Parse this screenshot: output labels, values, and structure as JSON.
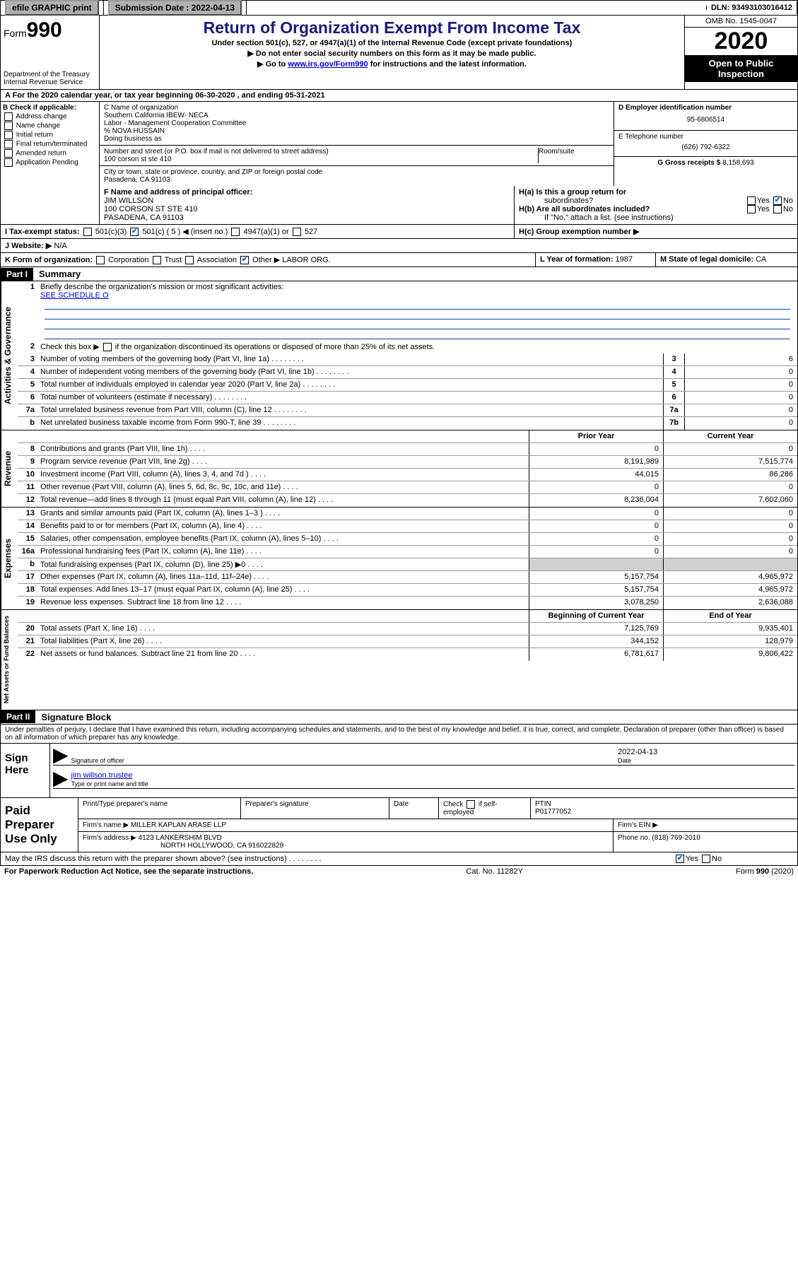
{
  "topbar": {
    "efile_label": "efile GRAPHIC print",
    "submission_label": "Submission Date : ",
    "submission_date": "2022-04-13",
    "dln_label": "DLN: ",
    "dln": "93493103016412"
  },
  "header": {
    "form_prefix": "Form",
    "form_number": "990",
    "dept1": "Department of the Treasury",
    "dept2": "Internal Revenue Service",
    "title": "Return of Organization Exempt From Income Tax",
    "subtitle": "Under section 501(c), 527, or 4947(a)(1) of the Internal Revenue Code (except private foundations)",
    "note1": "▶ Do not enter social security numbers on this form as it may be made public.",
    "note2_pre": "▶ Go to ",
    "note2_link": "www.irs.gov/Form990",
    "note2_post": " for instructions and the latest information.",
    "omb": "OMB No. 1545-0047",
    "year": "2020",
    "otp": "Open to Public Inspection"
  },
  "period": {
    "line": "A For the 2020 calendar year, or tax year beginning 06-30-2020    , and ending 05-31-2021"
  },
  "checkB": {
    "heading": "B Check if applicable:",
    "opts": [
      "Address change",
      "Name change",
      "Initial return",
      "Final return/terminated",
      "Amended return",
      "Application Pending"
    ]
  },
  "blockC": {
    "label": "C Name of organization",
    "name1": "Southern California IBEW- NECA",
    "name2": "Labor - Management Cooperation Committee",
    "care": "% NOVA HUSSAIN",
    "dba_label": "Doing business as",
    "addr_label": "Number and street (or P.O. box if mail is not delivered to street address)",
    "room_label": "Room/suite",
    "street": "100 corson st ste 410",
    "city_label": "City or town, state or province, country, and ZIP or foreign postal code",
    "city": "Pasadena, CA  91103"
  },
  "blockD": {
    "label": "D Employer identification number",
    "ein": "95-6806514"
  },
  "blockE": {
    "label": "E Telephone number",
    "phone": "(626) 792-6322"
  },
  "blockG": {
    "label": "G Gross receipts $ ",
    "amount": "8,158,693"
  },
  "blockF": {
    "label": "F  Name and address of principal officer:",
    "name": "JIM WILLSON",
    "addr1": "100 CORSON ST STE 410",
    "addr2": "PASADENA, CA  91103"
  },
  "blockH": {
    "ha": "H(a)  Is this a group return for",
    "ha2": "subordinates?",
    "hb": "H(b)  Are all subordinates included?",
    "hb_note": "If \"No,\" attach a list. (see instructions)",
    "hc": "H(c)  Group exemption number ▶",
    "yes": "Yes",
    "no": "No"
  },
  "blockI": {
    "label": "I   Tax-exempt status:",
    "opt1": "501(c)(3)",
    "opt2": "501(c) ( 5 ) ◀ (insert no.)",
    "opt3": "4947(a)(1) or",
    "opt4": "527"
  },
  "blockJ": {
    "label": "J   Website: ▶",
    "value": " N/A"
  },
  "blockK": {
    "label": "K Form of organization:",
    "opts": [
      "Corporation",
      "Trust",
      "Association",
      "Other ▶"
    ],
    "other_val": "LABOR ORG."
  },
  "blockL": {
    "label": "L Year of formation: ",
    "val": "1987"
  },
  "blockM": {
    "label": "M State of legal domicile: ",
    "val": "CA"
  },
  "part1": {
    "header": "Part I",
    "title": "Summary"
  },
  "summary": {
    "q1": "Briefly describe the organization's mission or most significant activities:",
    "q1_val": "SEE SCHEDULE O",
    "q2": "Check this box ▶      if the organization discontinued its operations or disposed of more than 25% of its net assets.",
    "lines_gov": [
      {
        "n": "3",
        "t": "Number of voting members of the governing body (Part VI, line 1a)",
        "b": "3",
        "v": "6"
      },
      {
        "n": "4",
        "t": "Number of independent voting members of the governing body (Part VI, line 1b)",
        "b": "4",
        "v": "0"
      },
      {
        "n": "5",
        "t": "Total number of individuals employed in calendar year 2020 (Part V, line 2a)",
        "b": "5",
        "v": "0"
      },
      {
        "n": "6",
        "t": "Total number of volunteers (estimate if necessary)",
        "b": "6",
        "v": "0"
      },
      {
        "n": "7a",
        "t": "Total unrelated business revenue from Part VIII, column (C), line 12",
        "b": "7a",
        "v": "0"
      },
      {
        "n": "b",
        "t": "Net unrelated business taxable income from Form 990-T, line 39",
        "b": "7b",
        "v": "0"
      }
    ],
    "col_prior": "Prior Year",
    "col_current": "Current Year",
    "col_begin": "Beginning of Current Year",
    "col_end": "End of Year",
    "rev": [
      {
        "n": "8",
        "t": "Contributions and grants (Part VIII, line 1h)",
        "p": "0",
        "c": "0"
      },
      {
        "n": "9",
        "t": "Program service revenue (Part VIII, line 2g)",
        "p": "8,191,989",
        "c": "7,515,774"
      },
      {
        "n": "10",
        "t": "Investment income (Part VIII, column (A), lines 3, 4, and 7d )",
        "p": "44,015",
        "c": "86,286"
      },
      {
        "n": "11",
        "t": "Other revenue (Part VIII, column (A), lines 5, 6d, 8c, 9c, 10c, and 11e)",
        "p": "0",
        "c": "0"
      },
      {
        "n": "12",
        "t": "Total revenue—add lines 8 through 11 (must equal Part VIII, column (A), line 12)",
        "p": "8,236,004",
        "c": "7,602,060"
      }
    ],
    "exp": [
      {
        "n": "13",
        "t": "Grants and similar amounts paid (Part IX, column (A), lines 1–3 )",
        "p": "0",
        "c": "0"
      },
      {
        "n": "14",
        "t": "Benefits paid to or for members (Part IX, column (A), line 4)",
        "p": "0",
        "c": "0"
      },
      {
        "n": "15",
        "t": "Salaries, other compensation, employee benefits (Part IX, column (A), lines 5–10)",
        "p": "0",
        "c": "0"
      },
      {
        "n": "16a",
        "t": "Professional fundraising fees (Part IX, column (A), line 11e)",
        "p": "0",
        "c": "0"
      },
      {
        "n": "b",
        "t": "Total fundraising expenses (Part IX, column (D), line 25) ▶0",
        "p": "",
        "c": "",
        "shaded": true
      },
      {
        "n": "17",
        "t": "Other expenses (Part IX, column (A), lines 11a–11d, 11f–24e)",
        "p": "5,157,754",
        "c": "4,965,972"
      },
      {
        "n": "18",
        "t": "Total expenses. Add lines 13–17 (must equal Part IX, column (A), line 25)",
        "p": "5,157,754",
        "c": "4,965,972"
      },
      {
        "n": "19",
        "t": "Revenue less expenses. Subtract line 18 from line 12",
        "p": "3,078,250",
        "c": "2,636,088"
      }
    ],
    "net": [
      {
        "n": "20",
        "t": "Total assets (Part X, line 16)",
        "p": "7,125,769",
        "c": "9,935,401"
      },
      {
        "n": "21",
        "t": "Total liabilities (Part X, line 26)",
        "p": "344,152",
        "c": "128,979"
      },
      {
        "n": "22",
        "t": "Net assets or fund balances. Subtract line 21 from line 20",
        "p": "6,781,617",
        "c": "9,806,422"
      }
    ]
  },
  "part2": {
    "header": "Part II",
    "title": "Signature Block"
  },
  "perjury": "Under penalties of perjury, I declare that I have examined this return, including accompanying schedules and statements, and to the best of my knowledge and belief, it is true, correct, and complete. Declaration of preparer (other than officer) is based on all information of which preparer has any knowledge.",
  "sign": {
    "heading": "Sign Here",
    "sig_label": "Signature of officer",
    "date_label": "Date",
    "date_val": "2022-04-13",
    "name": "jim willson  trustee",
    "name_label": "Type or print name and title"
  },
  "prep": {
    "heading": "Paid Preparer Use Only",
    "c1": "Print/Type preparer's name",
    "c2": "Preparer's signature",
    "c3": "Date",
    "c4a": "Check        if self-employed",
    "c5": "PTIN",
    "ptin": "P01777052",
    "firm_label": "Firm's name    ▶ ",
    "firm": "MILLER KAPLAN ARASE LLP",
    "ein_label": "Firm's EIN ▶",
    "addr_label": "Firm's address ▶ ",
    "addr1": "4123 LANKERSHIM BLVD",
    "addr2": "NORTH HOLLYWOOD, CA  916022828",
    "phone_label": "Phone no. ",
    "phone": "(818) 769-2010"
  },
  "discuss": {
    "q": "May the IRS discuss this return with the preparer shown above? (see instructions)",
    "yes": "Yes",
    "no": "No"
  },
  "footer": {
    "left": "For Paperwork Reduction Act Notice, see the separate instructions.",
    "mid": "Cat. No. 11282Y",
    "right": "Form 990 (2020)"
  },
  "labels": {
    "vert_gov": "Activities & Governance",
    "vert_rev": "Revenue",
    "vert_exp": "Expenses",
    "vert_net": "Net Assets or Fund Balances"
  }
}
